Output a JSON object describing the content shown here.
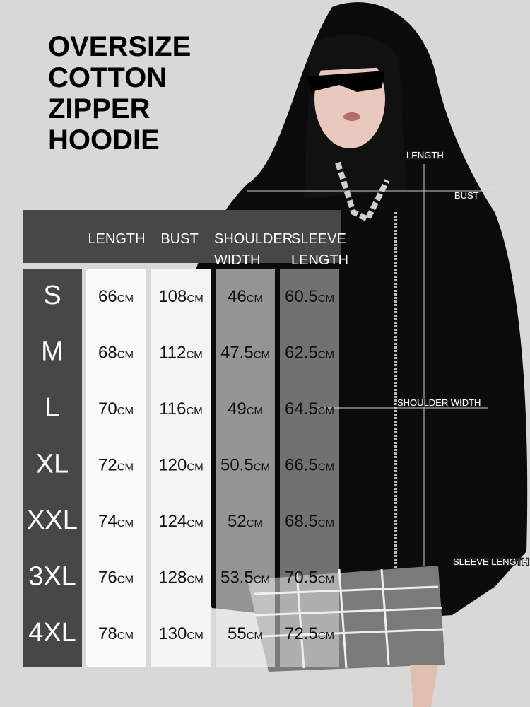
{
  "title_lines": [
    "OVERSIZE",
    "COTTON",
    "ZIPPER",
    "HOODIE"
  ],
  "annotations": {
    "length": "LENGTH",
    "bust": "BUST",
    "shoulder_width": "SHOULDER WIDTH",
    "sleeve_length": "SLEEVE LENGTH"
  },
  "table": {
    "headers": [
      [
        "LENGTH"
      ],
      [
        "BUST"
      ],
      [
        "SHOULDER",
        "WIDTH"
      ],
      [
        "SLEEVE",
        "LENGTH"
      ]
    ],
    "unit": "CM",
    "rows": [
      [
        "S",
        "66",
        "108",
        "46",
        "60.5"
      ],
      [
        "M",
        "68",
        "112",
        "47.5",
        "62.5"
      ],
      [
        "L",
        "70",
        "116",
        "49",
        "64.5"
      ],
      [
        "XL",
        "72",
        "120",
        "50.5",
        "66.5"
      ],
      [
        "XXL",
        "74",
        "124",
        "52",
        "68.5"
      ],
      [
        "3XL",
        "76",
        "128",
        "53.5",
        "70.5"
      ],
      [
        "4XL",
        "78",
        "130",
        "55",
        "72.5"
      ]
    ]
  }
}
